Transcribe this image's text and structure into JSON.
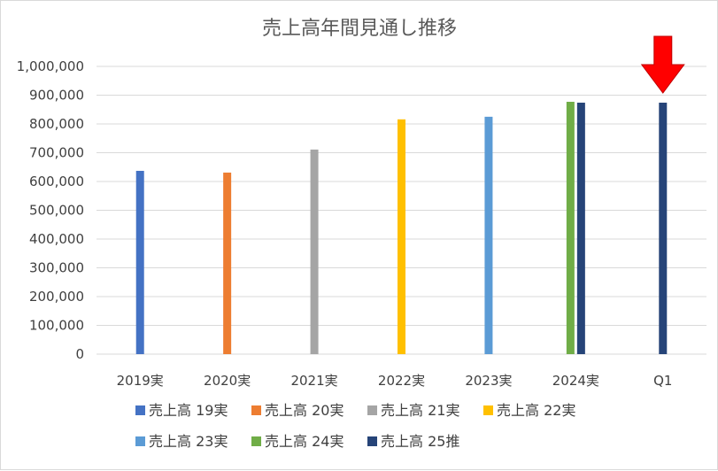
{
  "chart_data": {
    "type": "bar",
    "title": "売上高年間見通し推移",
    "xlabel": "",
    "ylabel": "",
    "ylim": [
      0,
      1000000
    ],
    "yticks": [
      "0",
      "100,000",
      "200,000",
      "300,000",
      "400,000",
      "500,000",
      "600,000",
      "700,000",
      "800,000",
      "900,000",
      "1,000,000"
    ],
    "grid": true,
    "legend_position": "bottom",
    "categories": [
      "2019実",
      "2020実",
      "2021実",
      "2022実",
      "2023実",
      "2024実",
      "Q1"
    ],
    "series": [
      {
        "name": "売上高 19実",
        "color": "#4472C4",
        "values": [
          637000,
          null,
          null,
          null,
          null,
          null,
          null
        ]
      },
      {
        "name": "売上高 20実",
        "color": "#ED7D31",
        "values": [
          null,
          631000,
          null,
          null,
          null,
          null,
          null
        ]
      },
      {
        "name": "売上高 21実",
        "color": "#A5A5A5",
        "values": [
          null,
          null,
          711000,
          null,
          null,
          null,
          null
        ]
      },
      {
        "name": "売上高 22実",
        "color": "#FFC000",
        "values": [
          null,
          null,
          null,
          816000,
          null,
          null,
          null
        ]
      },
      {
        "name": "売上高 23実",
        "color": "#5B9BD5",
        "values": [
          null,
          null,
          null,
          null,
          825000,
          null,
          null
        ]
      },
      {
        "name": "売上高 24実",
        "color": "#70AD47",
        "values": [
          null,
          null,
          null,
          null,
          null,
          877000,
          null
        ]
      },
      {
        "name": "売上高 25推",
        "color": "#264478",
        "values": [
          null,
          null,
          null,
          null,
          null,
          874000,
          874000
        ]
      }
    ],
    "annotations": [
      {
        "type": "arrow",
        "color": "#FF0000",
        "points_to": "Q1",
        "direction": "down"
      }
    ]
  }
}
